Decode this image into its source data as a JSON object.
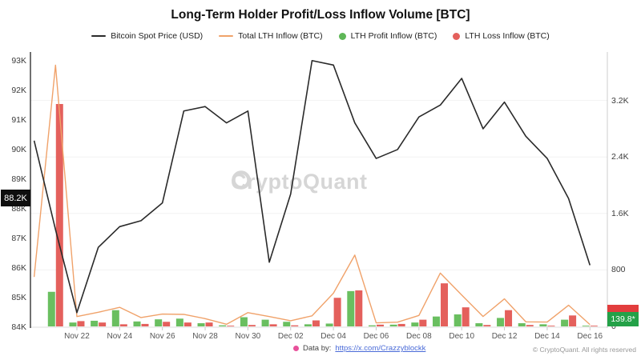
{
  "title": "Long-Term Holder Profit/Loss Inflow Volume [BTC]",
  "legend": [
    {
      "label": "Bitcoin Spot Price (USD)",
      "marker": "line",
      "color": "#2a2a2a"
    },
    {
      "label": "Total LTH Inflow (BTC)",
      "marker": "line",
      "color": "#f0a26a"
    },
    {
      "label": "LTH Profit Inflow (BTC)",
      "marker": "dot",
      "color": "#5eb757"
    },
    {
      "label": "LTH Loss Inflow (BTC)",
      "marker": "dot",
      "color": "#e4605c"
    }
  ],
  "watermark": "CryptoQuant",
  "badges": {
    "latest_price": "88.2K",
    "latest_volume": "139.8*"
  },
  "axes": {
    "left_ticks": [
      "93K",
      "92K",
      "91K",
      "90K",
      "89K",
      "88K",
      "87K",
      "86K",
      "85K",
      "84K"
    ],
    "left_values": [
      93,
      92,
      91,
      90,
      89,
      88,
      87,
      86,
      85,
      84
    ],
    "right_ticks": [
      "3.2K",
      "2.4K",
      "1.6K",
      "800",
      "0"
    ],
    "right_values": [
      3200,
      2400,
      1600,
      800,
      0
    ],
    "x_tick_labels": [
      "Nov 22",
      "Nov 24",
      "Nov 26",
      "Nov 28",
      "Nov 30",
      "Dec 02",
      "Dec 04",
      "Dec 06",
      "Dec 08",
      "Dec 10",
      "Dec 12",
      "Dec 14",
      "Dec 16"
    ]
  },
  "footer": {
    "data_by_prefix": "Data by:",
    "link_text": "https://x.com/Crazzyblockk",
    "copyright": "© CryptoQuant. All rights reserved"
  },
  "chart_data": {
    "type": "bar+line combo",
    "x": [
      "Nov 20",
      "Nov 21",
      "Nov 22",
      "Nov 23",
      "Nov 24",
      "Nov 25",
      "Nov 26",
      "Nov 27",
      "Nov 28",
      "Nov 29",
      "Nov 30",
      "Dec 01",
      "Dec 02",
      "Dec 03",
      "Dec 04",
      "Dec 05",
      "Dec 06",
      "Dec 07",
      "Dec 08",
      "Dec 09",
      "Dec 10",
      "Dec 11",
      "Dec 12",
      "Dec 13",
      "Dec 14",
      "Dec 15",
      "Dec 16"
    ],
    "series": [
      {
        "name": "Bitcoin Spot Price (USD)",
        "type": "line",
        "axis": "left",
        "unit": "K USD",
        "values": [
          90.3,
          87.3,
          84.5,
          86.7,
          87.4,
          87.6,
          88.2,
          91.3,
          91.45,
          90.9,
          91.3,
          86.2,
          88.5,
          93.0,
          92.85,
          90.9,
          89.7,
          90.0,
          91.1,
          91.5,
          92.4,
          90.7,
          91.6,
          90.45,
          89.7,
          88.35,
          86.1
        ]
      },
      {
        "name": "Total LTH Inflow (BTC)",
        "type": "line",
        "axis": "right",
        "values": [
          700,
          3700,
          140,
          200,
          270,
          125,
          175,
          170,
          110,
          30,
          195,
          140,
          80,
          150,
          470,
          1010,
          50,
          60,
          155,
          755,
          445,
          140,
          390,
          65,
          62,
          300,
          25
        ]
      },
      {
        "name": "LTH Profit Inflow (BTC)",
        "type": "bar",
        "axis": "right",
        "values": [
          0,
          490,
          55,
          80,
          230,
          70,
          100,
          110,
          45,
          15,
          130,
          95,
          65,
          30,
          40,
          500,
          15,
          25,
          55,
          140,
          170,
          45,
          120,
          45,
          30,
          95,
          10
        ]
      },
      {
        "name": "LTH Loss Inflow (BTC)",
        "type": "bar",
        "axis": "right",
        "values": [
          0,
          3150,
          75,
          55,
          30,
          35,
          65,
          55,
          55,
          10,
          20,
          30,
          15,
          85,
          405,
          510,
          25,
          35,
          95,
          610,
          270,
          20,
          230,
          20,
          10,
          155,
          10
        ]
      }
    ],
    "left_axis_range_k": [
      84,
      93
    ],
    "right_axis_range": [
      0,
      3200
    ],
    "grid": "horizontal, at right-axis ticks"
  }
}
